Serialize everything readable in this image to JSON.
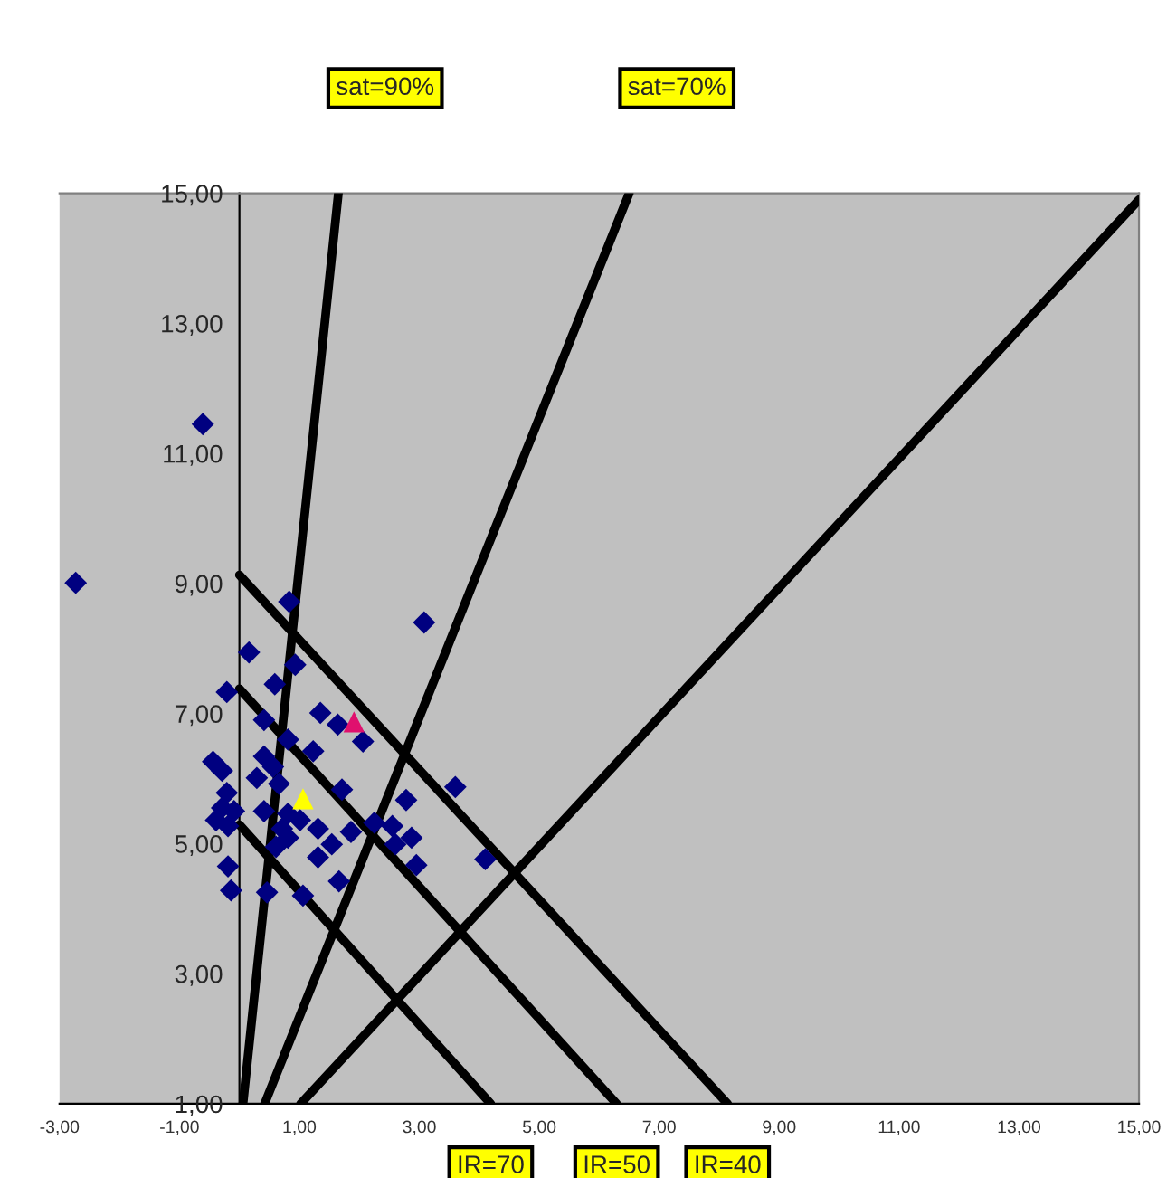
{
  "chart_data": {
    "type": "scatter",
    "xlim": [
      -3,
      15
    ],
    "ylim": [
      1,
      15
    ],
    "xticks": [
      {
        "value": -3,
        "label": "-3,00"
      },
      {
        "value": -1,
        "label": "-1,00"
      },
      {
        "value": 1,
        "label": "1,00"
      },
      {
        "value": 3,
        "label": "3,00"
      },
      {
        "value": 5,
        "label": "5,00"
      },
      {
        "value": 7,
        "label": "7,00"
      },
      {
        "value": 9,
        "label": "9,00"
      },
      {
        "value": 11,
        "label": "11,00"
      },
      {
        "value": 13,
        "label": "13,00"
      },
      {
        "value": 15,
        "label": "15,00"
      }
    ],
    "yticks": [
      {
        "value": 1,
        "label": "1,00"
      },
      {
        "value": 3,
        "label": "3,00"
      },
      {
        "value": 5,
        "label": "5,00"
      },
      {
        "value": 7,
        "label": "7,00"
      },
      {
        "value": 9,
        "label": "9,00"
      },
      {
        "value": 11,
        "label": "11,00"
      },
      {
        "value": 13,
        "label": "13,00"
      },
      {
        "value": 15,
        "label": "15,00"
      }
    ],
    "grid": false,
    "legend": false,
    "series": [
      {
        "color": "#000080",
        "marker": "diamond",
        "x": [
          -2.73,
          0.83,
          3.08,
          0.16,
          0.93,
          0.59,
          -0.21,
          1.35,
          1.64,
          0.41,
          2.06,
          0.81,
          1.23,
          -0.44,
          -0.29,
          0.41,
          0.29,
          0.56,
          0.66,
          1.71,
          -0.21,
          2.78,
          3.6,
          -0.09,
          0.41,
          0.81,
          -0.39,
          1.01,
          -0.19,
          1.31,
          1.86,
          2.25,
          2.55,
          0.81,
          0.61,
          1.54,
          2.87,
          2.6,
          1.31,
          4.1,
          2.95,
          -0.19,
          1.66,
          -0.14,
          0.46,
          1.06,
          0.71,
          -0.29,
          -0.61
        ],
        "values": [
          9.01,
          8.72,
          8.4,
          7.94,
          7.75,
          7.45,
          7.33,
          7.01,
          6.83,
          6.9,
          6.57,
          6.6,
          6.42,
          6.26,
          6.12,
          6.34,
          6.01,
          6.18,
          5.92,
          5.83,
          5.78,
          5.67,
          5.87,
          5.5,
          5.5,
          5.46,
          5.36,
          5.36,
          5.27,
          5.23,
          5.18,
          5.32,
          5.27,
          5.09,
          4.95,
          4.99,
          5.09,
          4.99,
          4.79,
          4.76,
          4.67,
          4.65,
          4.42,
          4.28,
          4.25,
          4.2,
          5.23,
          5.55,
          11.45
        ]
      },
      {
        "type": "scatter",
        "color": "#e0106e",
        "marker": "triangle",
        "x": [
          1.91
        ],
        "values": [
          6.87
        ]
      },
      {
        "type": "scatter",
        "color": "#ffff00",
        "marker": "triangle",
        "x": [
          1.06
        ],
        "values": [
          5.69
        ]
      },
      {
        "type": "line",
        "color": "#000000",
        "marker": "none",
        "x": [
          0.06,
          1.65
        ],
        "values": [
          1,
          15
        ]
      },
      {
        "type": "line",
        "color": "#000000",
        "marker": "none",
        "x": [
          0.42,
          6.5
        ],
        "values": [
          1,
          15
        ]
      },
      {
        "type": "line",
        "color": "#000000",
        "marker": "none",
        "x": [
          1.02,
          15
        ],
        "values": [
          1,
          14.9
        ]
      },
      {
        "type": "line",
        "color": "#000000",
        "marker": "none",
        "x": [
          0,
          8.14
        ],
        "values": [
          9.13,
          1
        ]
      },
      {
        "type": "line",
        "color": "#000000",
        "marker": "none",
        "x": [
          0,
          6.29
        ],
        "values": [
          7.38,
          1
        ]
      },
      {
        "type": "line",
        "color": "#000000",
        "marker": "none",
        "x": [
          0,
          4.19
        ],
        "values": [
          5.29,
          1
        ]
      }
    ],
    "annotations": [
      "sat=90%",
      "sat=70%",
      {
        "text": "IR=70",
        "x": 4.19,
        "y": 1
      },
      {
        "text": "IR=50",
        "x": 6.29,
        "y": 1
      },
      {
        "text": "IR=40",
        "x": 8.14,
        "y": 1
      }
    ]
  }
}
